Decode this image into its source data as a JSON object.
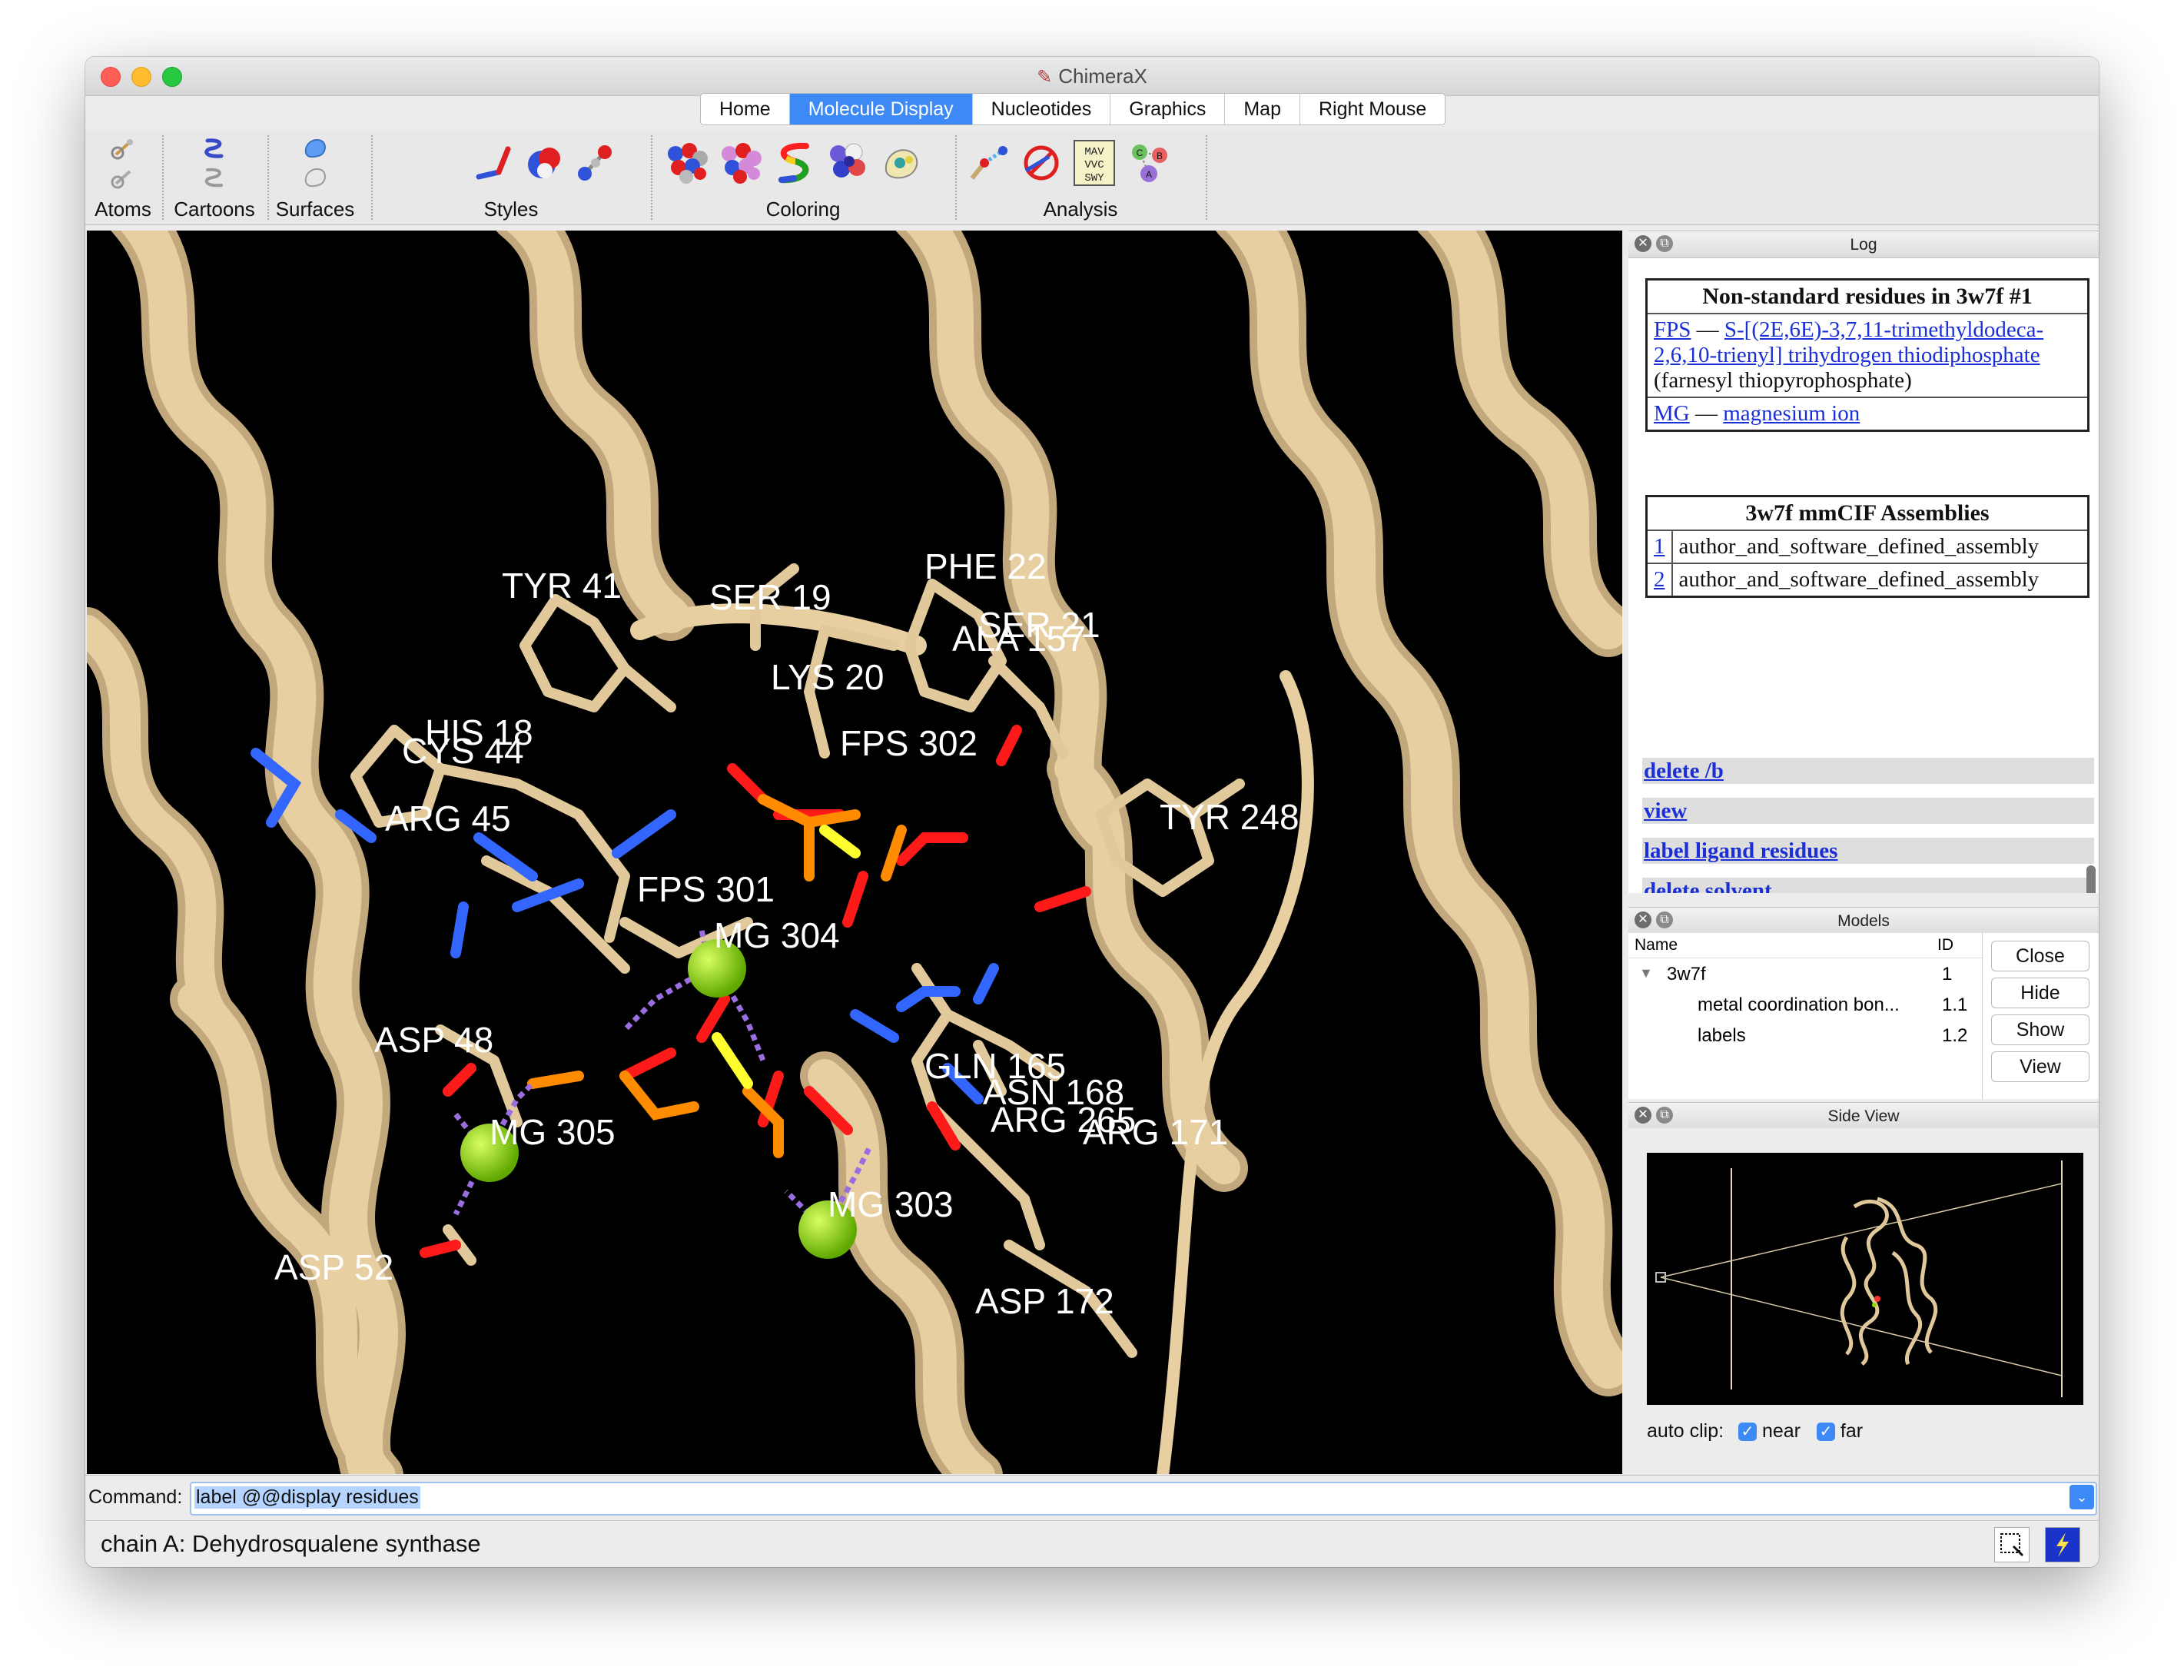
{
  "window": {
    "title": "ChimeraX"
  },
  "tabs": [
    {
      "label": "Home",
      "active": false
    },
    {
      "label": "Molecule Display",
      "active": true
    },
    {
      "label": "Nucleotides",
      "active": false
    },
    {
      "label": "Graphics",
      "active": false
    },
    {
      "label": "Map",
      "active": false
    },
    {
      "label": "Right Mouse",
      "active": false
    }
  ],
  "toolbar": {
    "groups": {
      "atoms": "Atoms",
      "cartoons": "Cartoons",
      "surfaces": "Surfaces",
      "styles": "Styles",
      "coloring": "Coloring",
      "analysis": "Analysis"
    },
    "sequence_icon_text": [
      "MAV",
      "VVC",
      "SWY"
    ],
    "chain_icon_letters": [
      "C",
      "B",
      "A"
    ]
  },
  "viewport": {
    "residue_labels": [
      "TYR 41",
      "SER 19",
      "PHE 22",
      "SER 21",
      "ALA 157",
      "LYS 20",
      "HIS 18",
      "CYS 44",
      "FPS 302",
      "ARG 45",
      "TYR 248",
      "FPS 301",
      "MG 304",
      "ASP 48",
      "GLN 165",
      "ASN 168",
      "ARG 265",
      "ARG 171",
      "MG 305",
      "MG 303",
      "ASP 52",
      "ASP 172"
    ],
    "colors": {
      "ribbon": "#e7cfa2",
      "carbon": "#e2c99c",
      "oxygen": "#ff1a1a",
      "nitrogen": "#3366ff",
      "phosphorus": "#ff8c00",
      "sulfur": "#ffff30",
      "magnesium": "#8fe000",
      "coordination": "#9a6ee0"
    }
  },
  "log": {
    "title": "Log",
    "nonstandard_table": {
      "header": "Non-standard residues in 3w7f #1",
      "rows": [
        {
          "code": "FPS",
          "dash": "—",
          "name": "S-[(2E,6E)-3,7,11-trimethyldodeca-2,6,10-trienyl] trihydrogen thiodiphosphate",
          "synonym": "(farnesyl thiopyrophosphate)"
        },
        {
          "code": "MG",
          "dash": "—",
          "name": "magnesium ion"
        }
      ]
    },
    "assemblies_table": {
      "header": "3w7f mmCIF Assemblies",
      "rows": [
        {
          "id": "1",
          "name": "author_and_software_defined_assembly"
        },
        {
          "id": "2",
          "name": "author_and_software_defined_assembly"
        }
      ]
    },
    "commands": [
      "delete /b",
      "view",
      "label ligand residues",
      "delete solvent",
      "label @@display residues"
    ]
  },
  "models": {
    "title": "Models",
    "columns": {
      "name": "Name",
      "id": "ID"
    },
    "rows": [
      {
        "name": "3w7f",
        "id": "1"
      },
      {
        "name": "metal coordination bon...",
        "id": "1.1"
      },
      {
        "name": "labels",
        "id": "1.2"
      }
    ],
    "buttons": [
      "Close",
      "Hide",
      "Show",
      "View"
    ]
  },
  "side_view": {
    "title": "Side View",
    "auto_clip_label": "auto clip:",
    "near_label": "near",
    "far_label": "far",
    "near_checked": true,
    "far_checked": true
  },
  "command": {
    "label": "Command:",
    "value": "label @@display residues"
  },
  "status": {
    "text": "chain A: Dehydrosqualene synthase"
  }
}
